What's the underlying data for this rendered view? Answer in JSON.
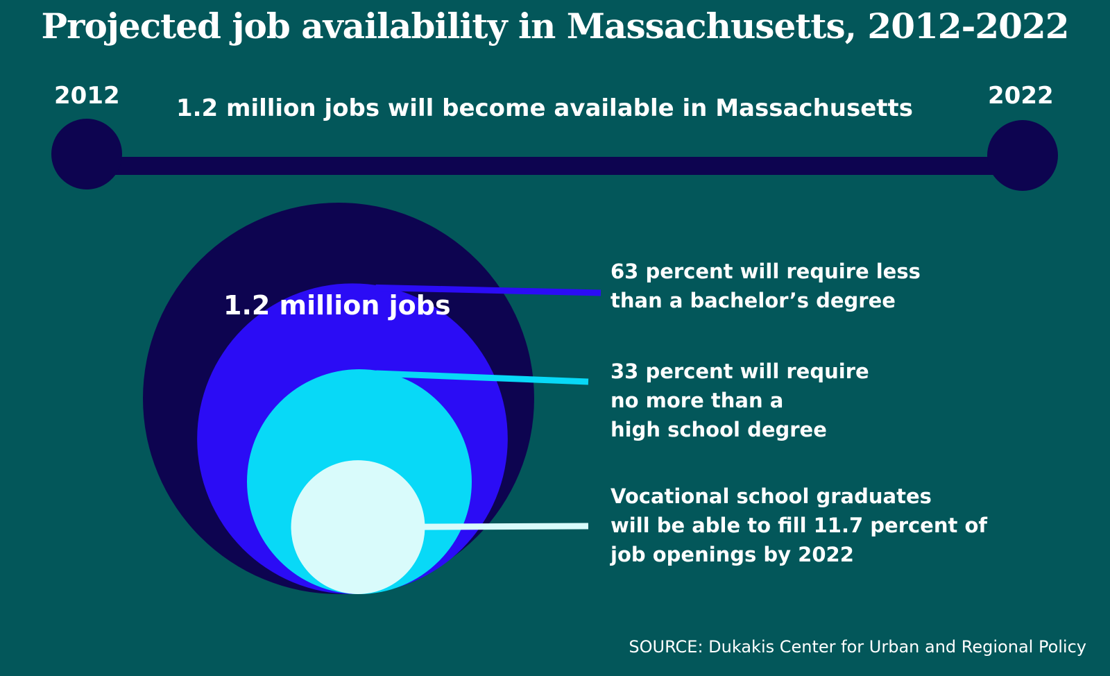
{
  "title": "Projected job availability in Massachusetts, 2012-2022",
  "timeline": {
    "start_year": "2012",
    "end_year": "2022",
    "headline": "1.2 million jobs will become available in Massachusetts"
  },
  "bubbles": {
    "total_label": "1.2 million jobs"
  },
  "callouts": [
    {
      "lines": [
        "63 percent will require less",
        "than a bachelor’s degree"
      ]
    },
    {
      "lines": [
        "33 percent will require",
        "no more than a",
        "high school degree"
      ]
    },
    {
      "lines": [
        "Vocational school graduates",
        "will be able to fill 11.7 percent of",
        "job openings by 2022"
      ]
    }
  ],
  "source": "SOURCE: Dukakis Center for Urban and Regional Policy",
  "colors": {
    "background": "#03575a",
    "total": "#0d0450",
    "less_than_bachelors": "#2b0cf5",
    "high_school": "#08d9f7",
    "vocational": "#d9fbfb"
  },
  "chart_data": {
    "type": "nested-bubble",
    "title": "Projected job availability in Massachusetts, 2012-2022",
    "total": {
      "label": "1.2 million jobs",
      "value": 1.2,
      "unit": "million jobs"
    },
    "segments": [
      {
        "label": "63 percent will require less than a bachelor’s degree",
        "percent": 63
      },
      {
        "label": "33 percent will require no more than a high school degree",
        "percent": 33
      },
      {
        "label": "Vocational school graduates will be able to fill 11.7 percent of job openings by 2022",
        "percent": 11.7
      }
    ]
  }
}
